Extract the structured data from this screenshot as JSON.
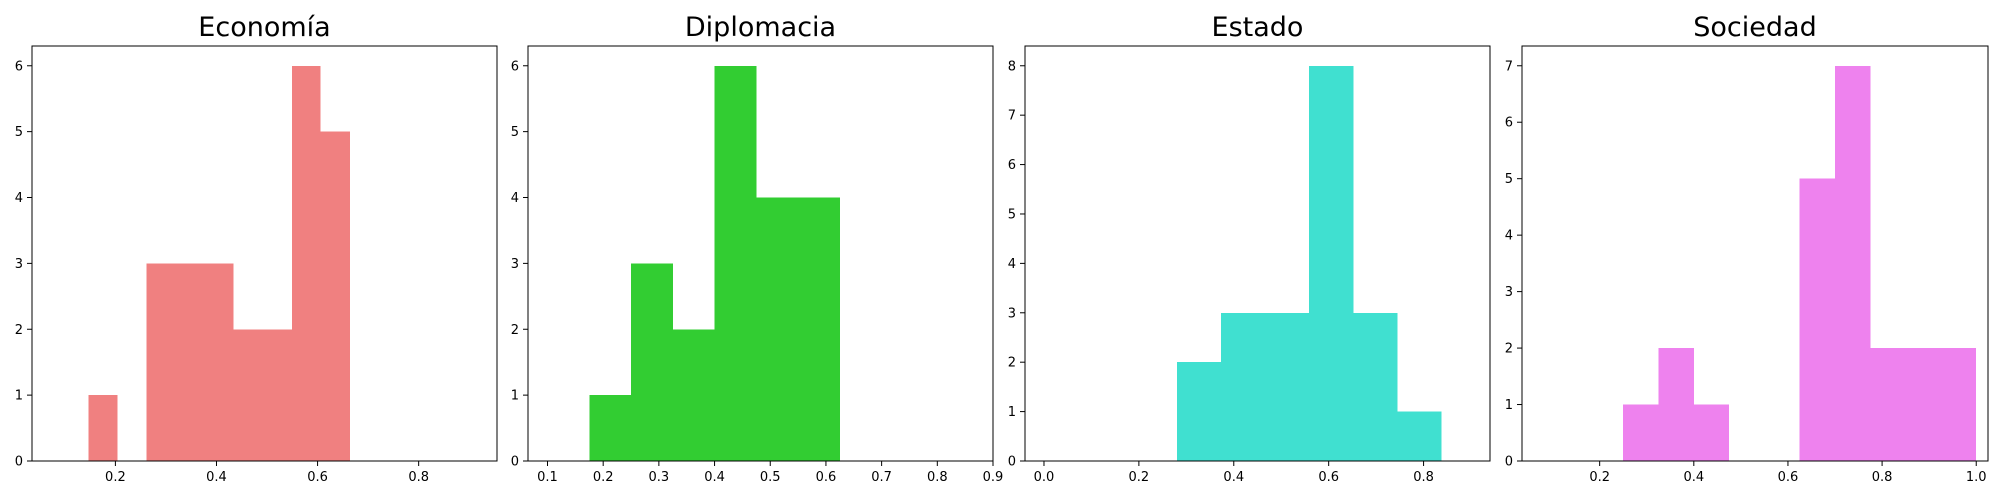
{
  "chart_data": [
    {
      "type": "bar",
      "title": "Economía",
      "color": "#f08080",
      "xlim": [
        0.035,
        0.955
      ],
      "ylim": [
        0,
        6.3
      ],
      "xticks": [
        "0.2",
        "0.4",
        "0.6",
        "0.8"
      ],
      "xtick_values": [
        0.2,
        0.4,
        0.6,
        0.8
      ],
      "yticks": [
        "0",
        "1",
        "2",
        "3",
        "4",
        "5",
        "6"
      ],
      "ytick_values": [
        0,
        1,
        2,
        3,
        4,
        5,
        6
      ],
      "bins": [
        {
          "x0": 0.147,
          "x1": 0.204,
          "count": 1
        },
        {
          "x0": 0.204,
          "x1": 0.262,
          "count": 0
        },
        {
          "x0": 0.262,
          "x1": 0.319,
          "count": 3
        },
        {
          "x0": 0.319,
          "x1": 0.377,
          "count": 3
        },
        {
          "x0": 0.377,
          "x1": 0.434,
          "count": 3
        },
        {
          "x0": 0.434,
          "x1": 0.491,
          "count": 2
        },
        {
          "x0": 0.491,
          "x1": 0.549,
          "count": 2
        },
        {
          "x0": 0.549,
          "x1": 0.606,
          "count": 6
        },
        {
          "x0": 0.606,
          "x1": 0.664,
          "count": 5
        },
        {
          "x0": 0.664,
          "x1": 0.721,
          "count": 0
        }
      ]
    },
    {
      "type": "bar",
      "title": "Diplomacia",
      "color": "#32cd32",
      "xlim": [
        0.065,
        0.9
      ],
      "ylim": [
        0,
        6.3
      ],
      "xticks": [
        "0.1",
        "0.2",
        "0.3",
        "0.4",
        "0.5",
        "0.6",
        "0.7",
        "0.8",
        "0.9"
      ],
      "xtick_values": [
        0.1,
        0.2,
        0.3,
        0.4,
        0.5,
        0.6,
        0.7,
        0.8,
        0.9
      ],
      "yticks": [
        "0",
        "1",
        "2",
        "3",
        "4",
        "5",
        "6"
      ],
      "ytick_values": [
        0,
        1,
        2,
        3,
        4,
        5,
        6
      ],
      "bins": [
        {
          "x0": 0.175,
          "x1": 0.25,
          "count": 1
        },
        {
          "x0": 0.25,
          "x1": 0.325,
          "count": 3
        },
        {
          "x0": 0.325,
          "x1": 0.4,
          "count": 2
        },
        {
          "x0": 0.4,
          "x1": 0.475,
          "count": 6
        },
        {
          "x0": 0.475,
          "x1": 0.55,
          "count": 4
        },
        {
          "x0": 0.55,
          "x1": 0.625,
          "count": 4
        }
      ]
    },
    {
      "type": "bar",
      "title": "Estado",
      "color": "#40e0d0",
      "xlim": [
        -0.04,
        0.94
      ],
      "ylim": [
        0,
        8.4
      ],
      "xticks": [
        "0.0",
        "0.2",
        "0.4",
        "0.6",
        "0.8"
      ],
      "xtick_values": [
        0.0,
        0.2,
        0.4,
        0.6,
        0.8
      ],
      "yticks": [
        "0",
        "1",
        "2",
        "3",
        "4",
        "5",
        "6",
        "7",
        "8"
      ],
      "ytick_values": [
        0,
        1,
        2,
        3,
        4,
        5,
        6,
        7,
        8
      ],
      "bins": [
        {
          "x0": 0.28,
          "x1": 0.373,
          "count": 2
        },
        {
          "x0": 0.373,
          "x1": 0.466,
          "count": 3
        },
        {
          "x0": 0.466,
          "x1": 0.559,
          "count": 3
        },
        {
          "x0": 0.559,
          "x1": 0.652,
          "count": 8
        },
        {
          "x0": 0.652,
          "x1": 0.745,
          "count": 3
        },
        {
          "x0": 0.745,
          "x1": 0.838,
          "count": 1
        }
      ]
    },
    {
      "type": "bar",
      "title": "Sociedad",
      "color": "#ee82ee",
      "xlim": [
        0.035,
        1.025
      ],
      "ylim": [
        0,
        7.35
      ],
      "xticks": [
        "0.2",
        "0.4",
        "0.6",
        "0.8",
        "1.0"
      ],
      "xtick_values": [
        0.2,
        0.4,
        0.6,
        0.8,
        1.0
      ],
      "yticks": [
        "0",
        "1",
        "2",
        "3",
        "4",
        "5",
        "6",
        "7"
      ],
      "ytick_values": [
        0,
        1,
        2,
        3,
        4,
        5,
        6,
        7
      ],
      "bins": [
        {
          "x0": 0.25,
          "x1": 0.325,
          "count": 1
        },
        {
          "x0": 0.325,
          "x1": 0.4,
          "count": 2
        },
        {
          "x0": 0.4,
          "x1": 0.475,
          "count": 1
        },
        {
          "x0": 0.475,
          "x1": 0.55,
          "count": 0
        },
        {
          "x0": 0.55,
          "x1": 0.625,
          "count": 0
        },
        {
          "x0": 0.625,
          "x1": 0.7,
          "count": 5
        },
        {
          "x0": 0.7,
          "x1": 0.775,
          "count": 7
        },
        {
          "x0": 0.775,
          "x1": 0.85,
          "count": 2
        },
        {
          "x0": 0.85,
          "x1": 0.925,
          "count": 2
        },
        {
          "x0": 0.925,
          "x1": 1.0,
          "count": 2
        }
      ]
    }
  ]
}
